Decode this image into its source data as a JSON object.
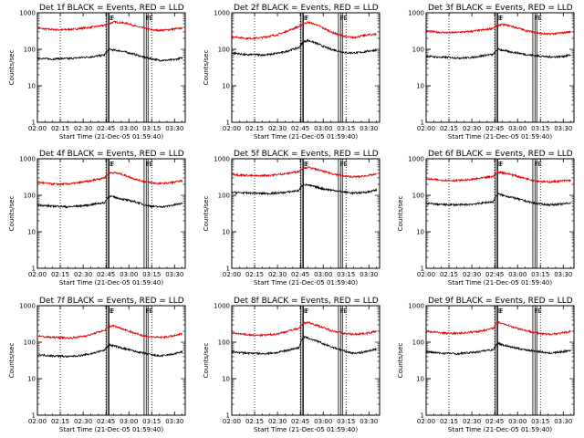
{
  "panels": [
    {
      "title": "Det 1f BLACK = Events, RED = LLD",
      "show_ylabel": true
    },
    {
      "title": "Det 2f BLACK = Events, RED = LLD",
      "show_ylabel": true
    },
    {
      "title": "Det 3f BLACK = Events, RED = LLD",
      "show_ylabel": false
    },
    {
      "title": "Det 4f BLACK = Events, RED = LLD",
      "show_ylabel": true
    },
    {
      "title": "Det 5f BLACK = Events, RED = LLD",
      "show_ylabel": true
    },
    {
      "title": "Det 6f BLACK = Events, RED = LLD",
      "show_ylabel": true
    },
    {
      "title": "Det 7f BLACK = Events, RED = LLD",
      "show_ylabel": true
    },
    {
      "title": "Det 8f BLACK = Events, RED = LLD",
      "show_ylabel": true
    },
    {
      "title": "Det 9f BLACK = Events, RED = LLD",
      "show_ylabel": true
    }
  ],
  "chart_data": {
    "type": "line",
    "layout": "3x3 grid of identical line plots",
    "xlabel": "Start Time (21-Dec-05 01:59:40)",
    "ylabel": "Counts/sec",
    "xlim": [
      "02:00",
      "03:37"
    ],
    "ylim": [
      1,
      1000
    ],
    "y_scale": "log",
    "x_tick_labels": [
      "02:00",
      "02:15",
      "02:30",
      "02:45",
      "03:00",
      "03:15",
      "03:30"
    ],
    "y_tick_labels": [
      "1",
      "10",
      "100",
      "1000"
    ],
    "markers": [
      {
        "label": "F",
        "t": "02:47"
      },
      {
        "label": "F",
        "t": "03:10"
      },
      {
        "label": "E",
        "t": "02:46",
        "style": "double-line"
      },
      {
        "label": "E",
        "t": "03:12",
        "style": "double-line"
      }
    ],
    "series_colors": {
      "events": "#000000",
      "lld": "#e00000"
    },
    "vertical_dotted_lines": [
      "02:15",
      "02:45",
      "03:15"
    ],
    "x_points": [
      "02:00",
      "02:05",
      "02:10",
      "02:15",
      "02:20",
      "02:25",
      "02:30",
      "02:35",
      "02:40",
      "02:44",
      "02:47",
      "02:50",
      "02:55",
      "03:00",
      "03:05",
      "03:10",
      "03:15",
      "03:20",
      "03:25",
      "03:30",
      "03:35"
    ],
    "panels": [
      {
        "det": "1f",
        "events": [
          58,
          55,
          54,
          56,
          55,
          58,
          60,
          62,
          66,
          70,
          100,
          95,
          90,
          80,
          70,
          60,
          55,
          50,
          50,
          52,
          58
        ],
        "lld": [
          380,
          360,
          350,
          340,
          350,
          360,
          380,
          400,
          430,
          450,
          500,
          560,
          540,
          500,
          420,
          380,
          340,
          330,
          340,
          360,
          380
        ]
      },
      {
        "det": "2f",
        "events": [
          80,
          75,
          70,
          72,
          70,
          72,
          78,
          85,
          100,
          110,
          160,
          175,
          150,
          120,
          100,
          90,
          80,
          80,
          82,
          90,
          95
        ],
        "lld": [
          230,
          210,
          200,
          200,
          210,
          230,
          250,
          300,
          360,
          420,
          500,
          550,
          480,
          380,
          300,
          250,
          220,
          210,
          230,
          250,
          260
        ]
      },
      {
        "det": "3f",
        "events": [
          65,
          62,
          60,
          60,
          58,
          58,
          60,
          64,
          70,
          72,
          100,
          95,
          85,
          80,
          72,
          68,
          65,
          62,
          62,
          64,
          70
        ],
        "lld": [
          320,
          300,
          290,
          285,
          290,
          300,
          310,
          330,
          350,
          380,
          460,
          480,
          440,
          380,
          330,
          300,
          270,
          260,
          270,
          285,
          300
        ]
      },
      {
        "det": "4f",
        "events": [
          55,
          52,
          50,
          50,
          48,
          50,
          52,
          55,
          60,
          62,
          95,
          90,
          80,
          72,
          65,
          55,
          50,
          48,
          50,
          55,
          60
        ],
        "lld": [
          230,
          215,
          205,
          200,
          205,
          215,
          230,
          250,
          280,
          300,
          400,
          420,
          380,
          320,
          270,
          240,
          220,
          210,
          215,
          230,
          250
        ]
      },
      {
        "det": "5f",
        "events": [
          120,
          118,
          115,
          115,
          112,
          112,
          115,
          120,
          128,
          135,
          200,
          190,
          170,
          150,
          140,
          130,
          120,
          115,
          118,
          125,
          140
        ],
        "lld": [
          380,
          360,
          350,
          340,
          345,
          355,
          370,
          390,
          420,
          450,
          560,
          580,
          520,
          450,
          400,
          360,
          330,
          320,
          330,
          350,
          380
        ]
      },
      {
        "det": "6f",
        "events": [
          60,
          58,
          56,
          55,
          55,
          55,
          57,
          60,
          64,
          66,
          110,
          100,
          90,
          80,
          70,
          62,
          58,
          55,
          56,
          58,
          62
        ],
        "lld": [
          280,
          270,
          260,
          255,
          255,
          260,
          270,
          290,
          310,
          330,
          430,
          420,
          380,
          330,
          290,
          260,
          240,
          230,
          240,
          250,
          260
        ]
      },
      {
        "det": "7f",
        "events": [
          45,
          44,
          42,
          42,
          40,
          42,
          44,
          48,
          55,
          60,
          85,
          80,
          70,
          62,
          55,
          50,
          45,
          42,
          44,
          48,
          55
        ],
        "lld": [
          150,
          140,
          135,
          135,
          130,
          135,
          145,
          160,
          190,
          210,
          270,
          280,
          240,
          200,
          170,
          150,
          140,
          135,
          140,
          150,
          170
        ]
      },
      {
        "det": "8f",
        "events": [
          55,
          52,
          50,
          50,
          48,
          50,
          52,
          58,
          65,
          70,
          140,
          130,
          110,
          90,
          75,
          65,
          55,
          50,
          52,
          58,
          65
        ],
        "lld": [
          180,
          170,
          160,
          155,
          155,
          160,
          170,
          190,
          220,
          240,
          330,
          350,
          300,
          250,
          210,
          190,
          170,
          165,
          170,
          180,
          200
        ]
      },
      {
        "det": "9f",
        "events": [
          55,
          52,
          50,
          50,
          48,
          50,
          52,
          55,
          60,
          62,
          95,
          85,
          75,
          68,
          62,
          58,
          55,
          50,
          52,
          55,
          60
        ],
        "lld": [
          200,
          190,
          180,
          175,
          175,
          180,
          190,
          200,
          220,
          240,
          350,
          330,
          280,
          240,
          210,
          190,
          170,
          165,
          170,
          180,
          200
        ]
      }
    ]
  }
}
